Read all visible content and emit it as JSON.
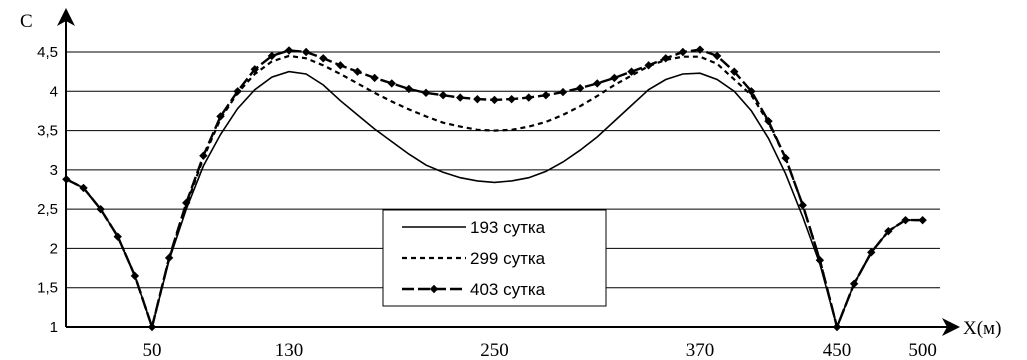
{
  "chart_data": {
    "type": "line",
    "ylabel": "C",
    "xlabel": "X(м)",
    "ylim": [
      1,
      4.5
    ],
    "xlim": [
      0,
      500
    ],
    "grid": true,
    "legend_position": "center-bottom",
    "yticks": [
      {
        "value": 1,
        "label": "1"
      },
      {
        "value": 1.5,
        "label": "1,5"
      },
      {
        "value": 2,
        "label": "2"
      },
      {
        "value": 2.5,
        "label": "2,5"
      },
      {
        "value": 3,
        "label": "3"
      },
      {
        "value": 3.5,
        "label": "3,5"
      },
      {
        "value": 4,
        "label": "4"
      },
      {
        "value": 4.5,
        "label": "4,5"
      }
    ],
    "xticks": [
      {
        "value": 50,
        "label": "50"
      },
      {
        "value": 130,
        "label": "130"
      },
      {
        "value": 250,
        "label": "250"
      },
      {
        "value": 370,
        "label": "370"
      },
      {
        "value": 450,
        "label": "450"
      },
      {
        "value": 500,
        "label": "500"
      }
    ],
    "series": [
      {
        "name": "193 сутка",
        "style": "solid",
        "color": "#000000",
        "x": [
          0,
          10,
          20,
          30,
          40,
          50,
          60,
          70,
          80,
          90,
          100,
          110,
          120,
          130,
          140,
          150,
          160,
          170,
          180,
          190,
          200,
          210,
          220,
          230,
          240,
          250,
          260,
          270,
          280,
          290,
          300,
          310,
          320,
          330,
          340,
          350,
          360,
          370,
          380,
          390,
          400,
          410,
          420,
          430,
          440,
          450,
          460,
          470,
          480,
          490,
          500
        ],
        "y": [
          2.88,
          2.77,
          2.5,
          2.15,
          1.65,
          1.0,
          1.85,
          2.5,
          3.05,
          3.45,
          3.78,
          4.02,
          4.18,
          4.25,
          4.22,
          4.08,
          3.88,
          3.7,
          3.52,
          3.36,
          3.2,
          3.06,
          2.97,
          2.9,
          2.86,
          2.84,
          2.86,
          2.9,
          2.98,
          3.1,
          3.25,
          3.42,
          3.62,
          3.82,
          4.02,
          4.15,
          4.22,
          4.23,
          4.15,
          4.0,
          3.75,
          3.4,
          2.95,
          2.4,
          1.8,
          1.0,
          1.55,
          1.95,
          2.22,
          2.36,
          2.36
        ]
      },
      {
        "name": "299 сутка",
        "style": "dashed",
        "color": "#000000",
        "x": [
          0,
          10,
          20,
          30,
          40,
          50,
          60,
          70,
          80,
          90,
          100,
          110,
          120,
          130,
          140,
          150,
          160,
          170,
          180,
          190,
          200,
          210,
          220,
          230,
          240,
          250,
          260,
          270,
          280,
          290,
          300,
          310,
          320,
          330,
          340,
          350,
          360,
          370,
          380,
          390,
          400,
          410,
          420,
          430,
          440,
          450,
          460,
          470,
          480,
          490,
          500
        ],
        "y": [
          2.88,
          2.77,
          2.5,
          2.15,
          1.65,
          1.0,
          1.87,
          2.55,
          3.15,
          3.65,
          3.98,
          4.22,
          4.38,
          4.45,
          4.42,
          4.33,
          4.22,
          4.1,
          3.98,
          3.87,
          3.77,
          3.68,
          3.6,
          3.55,
          3.51,
          3.5,
          3.51,
          3.55,
          3.61,
          3.7,
          3.81,
          3.94,
          4.08,
          4.2,
          4.32,
          4.4,
          4.44,
          4.44,
          4.35,
          4.15,
          3.95,
          3.6,
          3.15,
          2.55,
          1.85,
          1.0,
          1.55,
          1.95,
          2.22,
          2.36,
          2.36
        ]
      },
      {
        "name": "403 сутка",
        "style": "dash-diamond",
        "color": "#000000",
        "x": [
          0,
          10,
          20,
          30,
          40,
          50,
          60,
          70,
          80,
          90,
          100,
          110,
          120,
          130,
          140,
          150,
          160,
          170,
          180,
          190,
          200,
          210,
          220,
          230,
          240,
          250,
          260,
          270,
          280,
          290,
          300,
          310,
          320,
          330,
          340,
          350,
          360,
          370,
          380,
          390,
          400,
          410,
          420,
          430,
          440,
          450,
          460,
          470,
          480,
          490,
          500
        ],
        "y": [
          2.88,
          2.77,
          2.5,
          2.15,
          1.65,
          1.0,
          1.88,
          2.58,
          3.18,
          3.68,
          4.0,
          4.28,
          4.45,
          4.52,
          4.5,
          4.42,
          4.33,
          4.25,
          4.17,
          4.1,
          4.03,
          3.98,
          3.95,
          3.92,
          3.9,
          3.89,
          3.9,
          3.92,
          3.95,
          3.99,
          4.04,
          4.1,
          4.17,
          4.25,
          4.33,
          4.42,
          4.5,
          4.53,
          4.45,
          4.25,
          4.0,
          3.62,
          3.15,
          2.55,
          1.85,
          1.0,
          1.55,
          1.95,
          2.22,
          2.36,
          2.36
        ]
      }
    ]
  }
}
